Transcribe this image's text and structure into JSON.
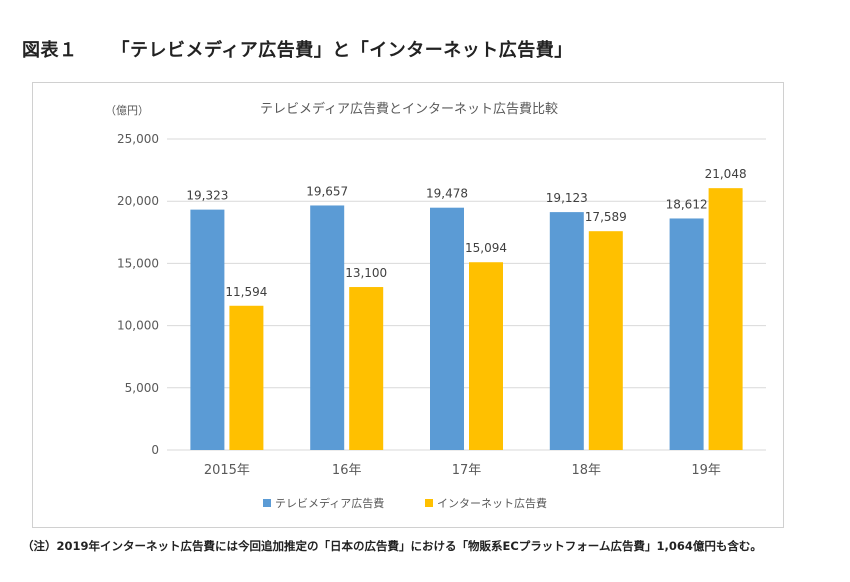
{
  "figure": {
    "number": "図表１",
    "title": "「テレビメディア広告費」と「インターネット広告費」"
  },
  "note": "（注）2019年インターネット広告費には今回追加推定の「日本の広告費」における「物販系ECプラットフォーム広告費」1,064億円も含む。",
  "colors": {
    "tv": "#5b9bd5",
    "internet": "#ffc000",
    "grid": "#d9d9d9",
    "axis_text": "#595959"
  },
  "chart_data": {
    "type": "bar",
    "title": "テレビメディア広告費とインターネット広告費比較",
    "unit_label": "（億円）",
    "categories": [
      "2015年",
      "16年",
      "17年",
      "18年",
      "19年"
    ],
    "series": [
      {
        "name": "テレビメディア広告費",
        "values": [
          19323,
          19657,
          19478,
          19123,
          18612
        ],
        "labels": [
          "19,323",
          "19,657",
          "19,478",
          "19,123",
          "18,612"
        ]
      },
      {
        "name": "インターネット広告費",
        "values": [
          11594,
          13100,
          15094,
          17589,
          21048
        ],
        "labels": [
          "11,594",
          "13,100",
          "15,094",
          "17,589",
          "21,048"
        ]
      }
    ],
    "ylim": [
      0,
      25000
    ],
    "yticks": [
      0,
      5000,
      10000,
      15000,
      20000,
      25000
    ],
    "ytick_labels": [
      "0",
      "5,000",
      "10,000",
      "15,000",
      "20,000",
      "25,000"
    ],
    "grid": true,
    "legend_position": "bottom"
  }
}
